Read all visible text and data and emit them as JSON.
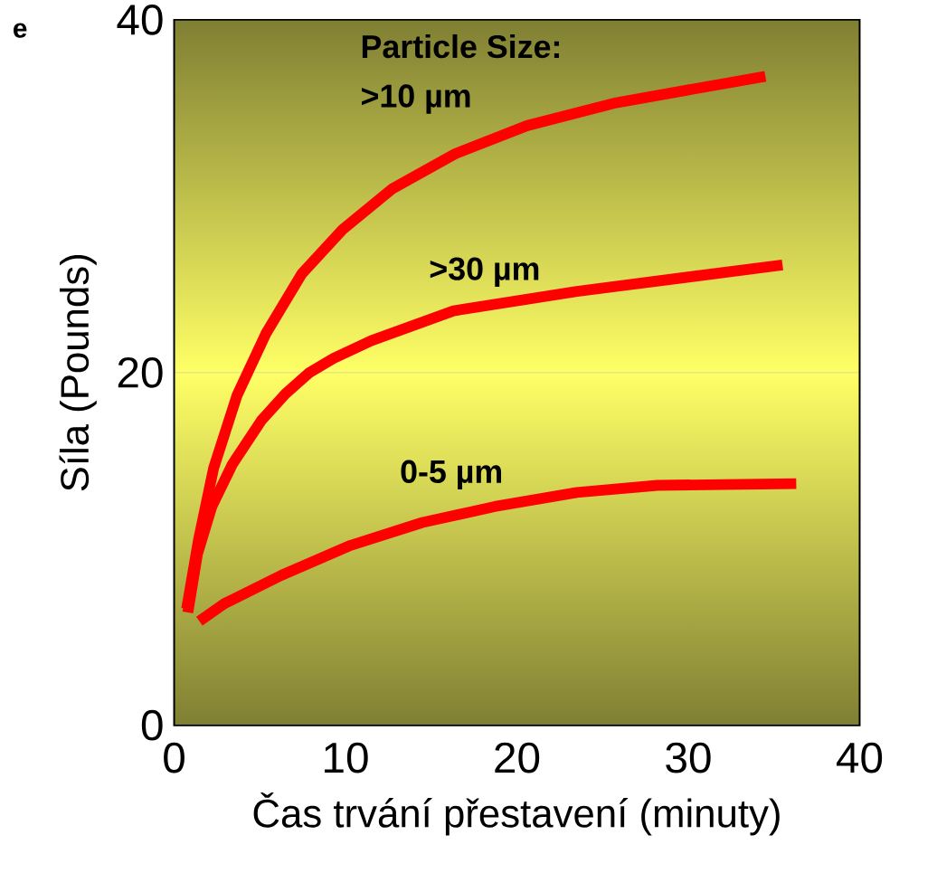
{
  "chart_data": {
    "type": "line",
    "xlabel": "Čas trvání přestavení (minuty)",
    "ylabel": "Síla (Pounds)",
    "annotations": [
      "e",
      "Particle Size:"
    ],
    "xlim": [
      0,
      40
    ],
    "xticks": [
      0,
      10,
      20,
      30,
      40
    ],
    "ylim": [
      0,
      40
    ],
    "yticks": [
      0,
      20,
      40
    ],
    "grid": "y",
    "marker": "none",
    "line_style": "solid",
    "series": [
      {
        "name": ">10 µm",
        "color": "#ff0000",
        "x": [
          0.73,
          1.42,
          2.31,
          3.67,
          5.35,
          7.45,
          9.82,
          12.7,
          16.4,
          20.6,
          25.8,
          34.5
        ],
        "values": [
          6.6,
          10.5,
          14.6,
          18.7,
          22.2,
          25.6,
          28.1,
          30.4,
          32.4,
          34.0,
          35.3,
          36.8
        ]
      },
      {
        "name": ">30 µm",
        "color": "#ff0000",
        "x": [
          0.8,
          1.36,
          2.2,
          3.4,
          5.1,
          6.5,
          7.9,
          9.3,
          11.5,
          16.3,
          23.5,
          35.5
        ],
        "values": [
          6.4,
          9.7,
          12.4,
          14.8,
          17.3,
          18.8,
          20.0,
          20.8,
          21.8,
          23.5,
          24.6,
          26.1
        ]
      },
      {
        "name": "0-5 µm",
        "color": "#ff0000",
        "x": [
          1.47,
          2.94,
          6.25,
          10.3,
          14.5,
          18.7,
          23.5,
          28.2,
          36.3
        ],
        "values": [
          5.9,
          6.9,
          8.5,
          10.2,
          11.5,
          12.4,
          13.2,
          13.6,
          13.7
        ]
      }
    ]
  }
}
